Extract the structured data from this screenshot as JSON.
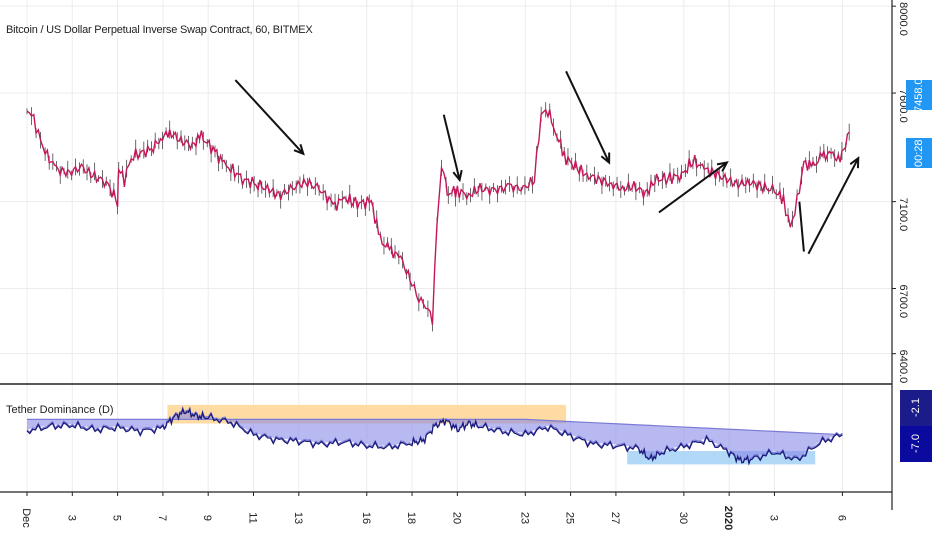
{
  "chart_title": "Bitcoin / US Dollar Perpetual Inverse Swap Contract, 60, BITMEX",
  "indicator_label": "Tether Dominance (D)",
  "price_tags": {
    "last_price": "7458.0",
    "countdown": "00:28"
  },
  "indicator_tags": {
    "upper": "-2.1",
    "lower": "-7.0"
  },
  "colors": {
    "price_line": "#c2185b",
    "price_wick": "#444444",
    "tag_blue": "#2196f3",
    "ind_line_dark": "#1a1a7a",
    "ind_line_light": "#7b7bd6",
    "ind_fill": "#8080e8",
    "orange_zone": "#ffd79a",
    "blue_zone": "#a8d4f5",
    "axis_line": "#222222",
    "grid": "#ececec"
  },
  "chart_data": [
    {
      "type": "line",
      "title": "Bitcoin / US Dollar Perpetual Inverse Swap Contract, 60, BITMEX",
      "y_ticks": [
        "8000.0",
        "7600.0",
        "7100.0",
        "6700.0",
        "6400.0"
      ],
      "y_tick_values": [
        8000,
        7600,
        7100,
        6700,
        6400
      ],
      "ylim": [
        6380,
        8010
      ],
      "x_ticks": [
        "Dec",
        "3",
        "5",
        "7",
        "9",
        "11",
        "13",
        "16",
        "18",
        "20",
        "23",
        "25",
        "27",
        "30",
        "2020",
        "3",
        "6"
      ],
      "x_tick_days": [
        1,
        3,
        5,
        7,
        9,
        11,
        13,
        16,
        18,
        20,
        23,
        25,
        27,
        30,
        32,
        34,
        37
      ],
      "x": [
        0.0,
        0.3,
        0.6,
        0.9,
        1.3,
        1.8,
        2.4,
        2.9,
        3.5,
        4.0,
        4.05,
        4.3,
        4.6,
        4.9,
        5.5,
        5.9,
        6.3,
        6.8,
        7.3,
        7.7,
        8.3,
        8.7,
        9.0,
        9.6,
        10.2,
        10.7,
        11.2,
        11.8,
        12.3,
        12.9,
        13.6,
        14.0,
        14.5,
        15.2,
        15.6,
        16.0,
        16.5,
        17.0,
        17.3,
        17.6,
        17.9,
        18.1,
        18.3,
        18.5,
        18.6,
        19.0,
        19.5,
        20.0,
        20.6,
        21.3,
        21.9,
        22.4,
        22.7,
        23.0,
        23.4,
        23.8,
        24.3,
        24.8,
        25.3,
        25.8,
        26.3,
        26.8,
        27.3,
        27.8,
        28.3,
        28.9,
        29.4,
        29.9,
        30.4,
        30.9,
        31.4,
        31.9,
        32.4,
        33.0,
        33.4,
        33.7,
        34.0,
        34.3,
        34.7,
        35.1,
        35.5,
        35.9,
        36.3
      ],
      "values": [
        7530,
        7480,
        7380,
        7310,
        7250,
        7230,
        7260,
        7220,
        7190,
        7100,
        7250,
        7200,
        7300,
        7320,
        7340,
        7390,
        7420,
        7380,
        7360,
        7400,
        7330,
        7270,
        7250,
        7200,
        7180,
        7150,
        7130,
        7170,
        7190,
        7160,
        7080,
        7120,
        7090,
        7100,
        6920,
        6880,
        6840,
        6720,
        6650,
        6620,
        6560,
        7000,
        7280,
        7180,
        7140,
        7150,
        7130,
        7160,
        7150,
        7170,
        7160,
        7200,
        7500,
        7520,
        7400,
        7300,
        7250,
        7220,
        7200,
        7180,
        7160,
        7170,
        7140,
        7200,
        7210,
        7220,
        7290,
        7250,
        7230,
        7200,
        7180,
        7190,
        7170,
        7150,
        7110,
        6980,
        7100,
        7280,
        7260,
        7310,
        7320,
        7290,
        7420
      ]
    },
    {
      "type": "line",
      "title": "Tether Dominance (D)",
      "y_ticks": [
        "-2.1",
        "-7.0"
      ],
      "ylim": [
        -20,
        5
      ],
      "series": [
        {
          "name": "",
          "x": [
            0,
            1,
            2,
            3,
            4,
            5,
            6,
            6.5,
            7,
            7.5,
            8,
            9,
            10,
            11,
            12,
            13,
            14,
            15,
            16,
            17,
            17.5,
            18,
            18.5,
            19,
            19.5,
            20,
            21,
            22,
            23,
            24,
            25,
            26,
            27,
            27.5,
            28,
            29,
            30,
            31,
            31.5,
            32,
            33,
            34,
            35,
            36
          ],
          "values": [
            -4.8,
            -3.6,
            -3.3,
            -4.5,
            -3.9,
            -4.9,
            -4.0,
            -1.0,
            0.5,
            -0.8,
            -1.2,
            -2.5,
            -5.8,
            -7.2,
            -7.6,
            -8.4,
            -7.8,
            -8.8,
            -9.2,
            -8.0,
            -7.4,
            -3.5,
            -2.0,
            -4.5,
            -2.8,
            -3.6,
            -5.0,
            -5.8,
            -3.8,
            -6.2,
            -8.4,
            -8.8,
            -9.6,
            -12.4,
            -10.6,
            -9.0,
            -7.2,
            -10.5,
            -12.8,
            -12.4,
            -10.5,
            -12.6,
            -8.0,
            -5.8
          ]
        }
      ],
      "zones": [
        {
          "name": "orange",
          "x_start": 6.2,
          "x_end": 23.8,
          "y_top": 1.8,
          "y_bottom": -3.2
        },
        {
          "name": "blue",
          "x_start": 26.5,
          "x_end": 34.8,
          "y_top": -10.6,
          "y_bottom": -14.2
        }
      ],
      "avg_band_top": -2.1,
      "avg_band_top_right": -6.2
    }
  ],
  "annotations": [
    {
      "type": "arrow",
      "from_day": 10.2,
      "from_price": 7660,
      "to_day": 13.2,
      "to_price": 7320
    },
    {
      "type": "arrow",
      "from_day": 19.4,
      "from_price": 7500,
      "to_day": 20.1,
      "to_price": 7200
    },
    {
      "type": "arrow",
      "from_day": 24.8,
      "from_price": 7700,
      "to_day": 26.7,
      "to_price": 7280
    },
    {
      "type": "arrow",
      "from_day": 28.9,
      "from_price": 7050,
      "to_day": 31.9,
      "to_price": 7280
    },
    {
      "type": "arrow",
      "from_day": 35.5,
      "from_price": 6860,
      "to_day": 37.7,
      "to_price": 7300
    },
    {
      "type": "line",
      "from_day": 35.1,
      "from_price": 7100,
      "to_day": 35.3,
      "to_price": 6870
    }
  ]
}
